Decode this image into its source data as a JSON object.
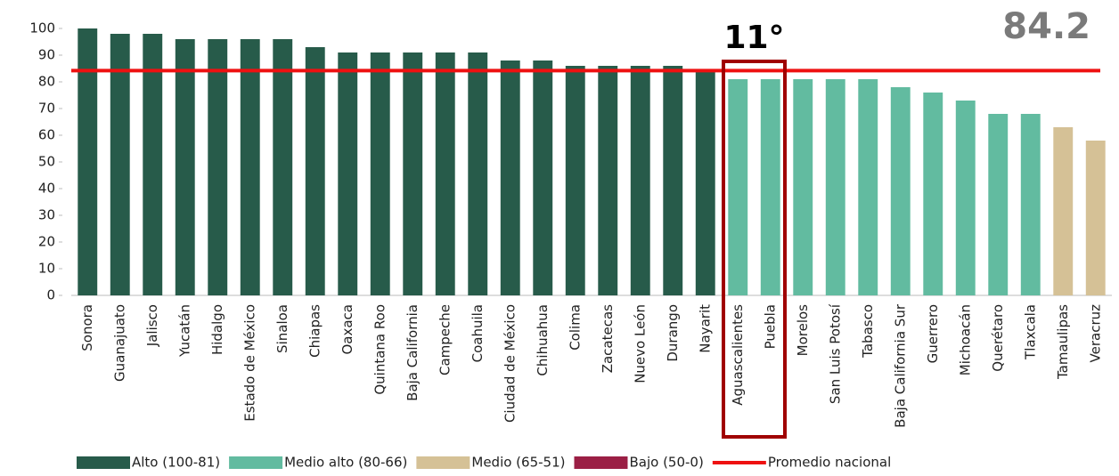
{
  "chart_data": {
    "type": "bar",
    "categories": [
      "Sonora",
      "Guanajuato",
      "Jalisco",
      "Yucatán",
      "Hidalgo",
      "Estado de México",
      "Sinaloa",
      "Chiapas",
      "Oaxaca",
      "Quintana Roo",
      "Baja California",
      "Campeche",
      "Coahuila",
      "Ciudad de México",
      "Chihuahua",
      "Colima",
      "Zacatecas",
      "Nuevo León",
      "Durango",
      "Nayarit",
      "Aguascalientes",
      "Puebla",
      "Morelos",
      "San Luis Potosí",
      "Tabasco",
      "Baja California Sur",
      "Guerrero",
      "Michoacán",
      "Querétaro",
      "Tlaxcala",
      "Tamaulipas",
      "Veracruz"
    ],
    "series": [
      {
        "name": "Alto (100-81)",
        "color": "#275b4a",
        "values": [
          100,
          98,
          98,
          96,
          96,
          96,
          96,
          93,
          91,
          91,
          91,
          91,
          91,
          88,
          88,
          86,
          86,
          86,
          86,
          84,
          null,
          null,
          null,
          null,
          null,
          null,
          null,
          null,
          null,
          null,
          null,
          null
        ]
      },
      {
        "name": "Medio alto (80-66)",
        "color": "#62bba0",
        "values": [
          null,
          null,
          null,
          null,
          null,
          null,
          null,
          null,
          null,
          null,
          null,
          null,
          null,
          null,
          null,
          null,
          null,
          null,
          null,
          null,
          81,
          81,
          81,
          81,
          81,
          78,
          76,
          73,
          68,
          68,
          null,
          null
        ]
      },
      {
        "name": "Medio (65-51)",
        "color": "#d5c196",
        "values": [
          null,
          null,
          null,
          null,
          null,
          null,
          null,
          null,
          null,
          null,
          null,
          null,
          null,
          null,
          null,
          null,
          null,
          null,
          null,
          null,
          null,
          null,
          null,
          null,
          null,
          null,
          null,
          null,
          null,
          null,
          63,
          58
        ]
      },
      {
        "name": "Bajo (50-0)",
        "color": "#9b1f45",
        "values": [
          null,
          null,
          null,
          null,
          null,
          null,
          null,
          null,
          null,
          null,
          null,
          null,
          null,
          null,
          null,
          null,
          null,
          null,
          null,
          null,
          null,
          null,
          null,
          null,
          null,
          null,
          null,
          null,
          null,
          null,
          null,
          null
        ]
      }
    ],
    "reference_line": {
      "name": "Promedio nacional",
      "value": 84.2,
      "label": "84.2",
      "color": "#ee1111"
    },
    "annotation": {
      "text": "11°",
      "color": "#a00000",
      "categories": [
        20,
        21
      ]
    },
    "ylim": [
      0,
      100
    ],
    "yticks": [
      0,
      10,
      20,
      30,
      40,
      50,
      60,
      70,
      80,
      90,
      100
    ]
  }
}
